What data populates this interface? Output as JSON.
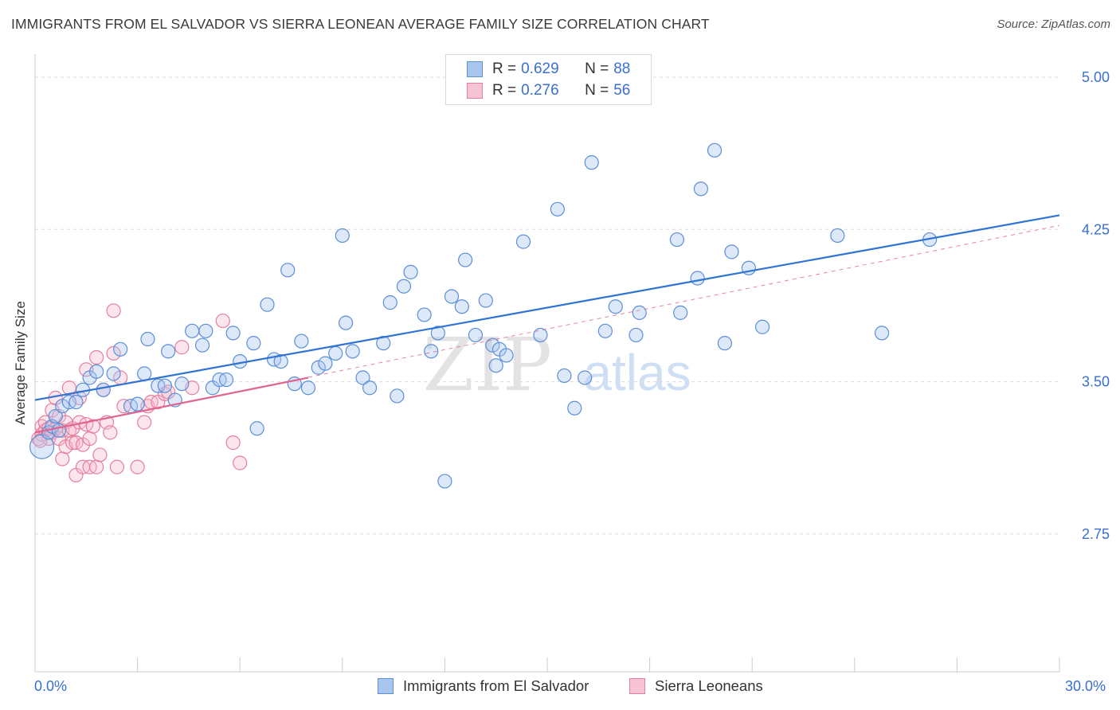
{
  "title": "IMMIGRANTS FROM EL SALVADOR VS SIERRA LEONEAN AVERAGE FAMILY SIZE CORRELATION CHART",
  "source": "Source: ZipAtlas.com",
  "watermark": {
    "zip": "ZIP",
    "atlas": "atlas"
  },
  "legend": {
    "rows": [
      {
        "r_label": "R = ",
        "r_value": "0.629",
        "n_label": "N = ",
        "n_value": "88"
      },
      {
        "r_label": "R = ",
        "r_value": "0.276",
        "n_label": "N = ",
        "n_value": "56"
      }
    ]
  },
  "bottom_legend": [
    "Immigrants from El Salvador",
    "Sierra Leoneans"
  ],
  "colors": {
    "blue_fill": "#aac6ef",
    "blue_stroke": "#5b8fd6",
    "blue_line": "#2f73d4",
    "pink_fill": "#f6b8cc",
    "pink_stroke": "#e57fa0",
    "pink_line": "#e0648f",
    "axis_text": "#3a6fd0",
    "grid": "#d9d9d9"
  },
  "chart_data": {
    "type": "scatter",
    "title": "IMMIGRANTS FROM EL SALVADOR VS SIERRA LEONEAN AVERAGE FAMILY SIZE CORRELATION CHART",
    "xlabel": "",
    "ylabel": "Average Family Size",
    "xlim": [
      0,
      30
    ],
    "ylim": [
      2.0,
      5.12
    ],
    "x_tick_labels": [
      "0.0%",
      "30.0%"
    ],
    "y_ticks": [
      2.75,
      3.5,
      4.25,
      5.0
    ],
    "y_tick_labels": [
      "2.75",
      "3.50",
      "4.25",
      "5.00"
    ],
    "grid": "horizontal dashed",
    "legend_position": "top-center",
    "series": [
      {
        "name": "Immigrants from El Salvador",
        "R": 0.629,
        "N": 88,
        "trend": {
          "x": [
            0,
            30
          ],
          "y": [
            3.41,
            4.32
          ]
        },
        "points": [
          [
            0.2,
            3.18
          ],
          [
            0.4,
            3.25
          ],
          [
            0.5,
            3.28
          ],
          [
            0.6,
            3.33
          ],
          [
            0.7,
            3.26
          ],
          [
            0.8,
            3.38
          ],
          [
            1.0,
            3.4
          ],
          [
            1.2,
            3.4
          ],
          [
            1.4,
            3.46
          ],
          [
            1.6,
            3.52
          ],
          [
            1.8,
            3.55
          ],
          [
            2.0,
            3.46
          ],
          [
            2.3,
            3.54
          ],
          [
            2.5,
            3.66
          ],
          [
            2.8,
            3.38
          ],
          [
            3.0,
            3.39
          ],
          [
            3.2,
            3.54
          ],
          [
            3.3,
            3.71
          ],
          [
            3.6,
            3.48
          ],
          [
            3.8,
            3.48
          ],
          [
            3.9,
            3.65
          ],
          [
            4.1,
            3.41
          ],
          [
            4.3,
            3.49
          ],
          [
            4.6,
            3.75
          ],
          [
            4.9,
            3.68
          ],
          [
            5.0,
            3.75
          ],
          [
            5.2,
            3.47
          ],
          [
            5.4,
            3.51
          ],
          [
            5.6,
            3.51
          ],
          [
            5.8,
            3.74
          ],
          [
            6.0,
            3.6
          ],
          [
            6.4,
            3.69
          ],
          [
            6.5,
            3.27
          ],
          [
            6.8,
            3.88
          ],
          [
            7.0,
            3.61
          ],
          [
            7.2,
            3.6
          ],
          [
            7.4,
            4.05
          ],
          [
            7.6,
            3.49
          ],
          [
            7.8,
            3.7
          ],
          [
            8.0,
            3.47
          ],
          [
            8.3,
            3.57
          ],
          [
            8.5,
            3.59
          ],
          [
            8.8,
            3.64
          ],
          [
            9.0,
            4.22
          ],
          [
            9.1,
            3.79
          ],
          [
            9.3,
            3.65
          ],
          [
            9.6,
            3.52
          ],
          [
            9.8,
            3.47
          ],
          [
            10.2,
            3.69
          ],
          [
            10.4,
            3.89
          ],
          [
            10.6,
            3.43
          ],
          [
            10.8,
            3.97
          ],
          [
            11.0,
            4.04
          ],
          [
            11.4,
            3.83
          ],
          [
            11.6,
            3.65
          ],
          [
            11.8,
            3.74
          ],
          [
            12.0,
            3.01
          ],
          [
            12.2,
            3.92
          ],
          [
            12.5,
            3.87
          ],
          [
            12.6,
            4.1
          ],
          [
            12.9,
            3.73
          ],
          [
            13.2,
            3.9
          ],
          [
            13.4,
            3.68
          ],
          [
            13.5,
            3.58
          ],
          [
            13.6,
            3.66
          ],
          [
            13.8,
            3.63
          ],
          [
            14.3,
            4.19
          ],
          [
            14.8,
            3.73
          ],
          [
            15.3,
            4.35
          ],
          [
            15.5,
            3.53
          ],
          [
            15.8,
            3.37
          ],
          [
            16.1,
            3.52
          ],
          [
            16.3,
            4.58
          ],
          [
            16.7,
            3.75
          ],
          [
            17.0,
            3.87
          ],
          [
            17.6,
            3.73
          ],
          [
            17.7,
            3.84
          ],
          [
            18.8,
            4.2
          ],
          [
            18.9,
            3.84
          ],
          [
            19.4,
            4.01
          ],
          [
            19.5,
            4.45
          ],
          [
            19.9,
            4.64
          ],
          [
            20.2,
            3.69
          ],
          [
            20.4,
            4.14
          ],
          [
            20.9,
            4.06
          ],
          [
            21.3,
            3.77
          ],
          [
            23.5,
            4.22
          ],
          [
            24.8,
            3.74
          ],
          [
            26.2,
            4.2
          ]
        ]
      },
      {
        "name": "Sierra Leoneans",
        "R": 0.276,
        "N": 56,
        "trend": {
          "x": [
            0,
            8.0
          ],
          "y": [
            3.25,
            3.52
          ]
        },
        "trend_extended": {
          "x": [
            0,
            30
          ],
          "y": [
            3.25,
            4.27
          ]
        },
        "points": [
          [
            0.1,
            3.22
          ],
          [
            0.2,
            3.28
          ],
          [
            0.2,
            3.24
          ],
          [
            0.3,
            3.26
          ],
          [
            0.3,
            3.3
          ],
          [
            0.4,
            3.22
          ],
          [
            0.4,
            3.27
          ],
          [
            0.5,
            3.25
          ],
          [
            0.5,
            3.36
          ],
          [
            0.6,
            3.42
          ],
          [
            0.6,
            3.27
          ],
          [
            0.7,
            3.33
          ],
          [
            0.7,
            3.22
          ],
          [
            0.8,
            3.26
          ],
          [
            0.8,
            3.12
          ],
          [
            0.9,
            3.18
          ],
          [
            0.9,
            3.3
          ],
          [
            1.0,
            3.26
          ],
          [
            1.0,
            3.47
          ],
          [
            1.1,
            3.2
          ],
          [
            1.1,
            3.27
          ],
          [
            1.2,
            3.04
          ],
          [
            1.2,
            3.2
          ],
          [
            1.3,
            3.3
          ],
          [
            1.3,
            3.42
          ],
          [
            1.4,
            3.19
          ],
          [
            1.4,
            3.08
          ],
          [
            1.5,
            3.56
          ],
          [
            1.5,
            3.29
          ],
          [
            1.6,
            3.22
          ],
          [
            1.6,
            3.08
          ],
          [
            1.7,
            3.28
          ],
          [
            1.8,
            3.08
          ],
          [
            1.8,
            3.62
          ],
          [
            1.9,
            3.14
          ],
          [
            2.0,
            3.46
          ],
          [
            2.1,
            3.3
          ],
          [
            2.2,
            3.25
          ],
          [
            2.3,
            3.64
          ],
          [
            2.3,
            3.85
          ],
          [
            2.4,
            3.08
          ],
          [
            2.5,
            3.52
          ],
          [
            2.6,
            3.38
          ],
          [
            3.0,
            3.08
          ],
          [
            3.2,
            3.3
          ],
          [
            3.3,
            3.38
          ],
          [
            3.4,
            3.4
          ],
          [
            3.6,
            3.4
          ],
          [
            3.8,
            3.44
          ],
          [
            3.9,
            3.45
          ],
          [
            4.3,
            3.67
          ],
          [
            4.6,
            3.47
          ],
          [
            5.5,
            3.8
          ],
          [
            5.8,
            3.2
          ],
          [
            6.0,
            3.1
          ],
          [
            0.15,
            3.21
          ]
        ]
      }
    ]
  }
}
